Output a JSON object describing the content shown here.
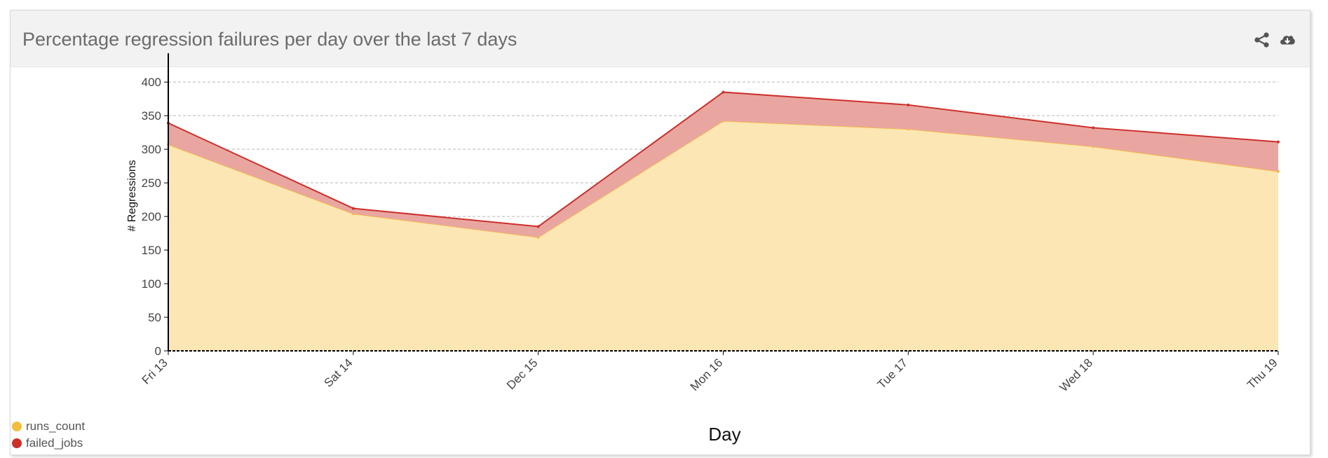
{
  "panel": {
    "title": "Percentage regression failures per day over the last 7 days",
    "icons": [
      "share-icon",
      "cloud-download-icon"
    ]
  },
  "chart_data": {
    "type": "area",
    "stacked": true,
    "categories": [
      "Fri 13",
      "Sat 14",
      "Dec 15",
      "Mon 16",
      "Tue 17",
      "Wed 18",
      "Thu 19"
    ],
    "series": [
      {
        "name": "runs_count",
        "color": "#f5bd3d",
        "fill": "#fce6b4",
        "values": [
          307,
          204,
          169,
          342,
          330,
          304,
          267
        ]
      },
      {
        "name": "failed_jobs",
        "color": "#cc2f2a",
        "fill": "#e9a6a1",
        "values": [
          32,
          8,
          16,
          43,
          36,
          28,
          44
        ]
      }
    ],
    "xlabel": "Day",
    "ylabel": "# Regressions",
    "ylim": [
      0,
      420
    ],
    "yticks": [
      0,
      50,
      100,
      150,
      200,
      250,
      300,
      350,
      400
    ],
    "grid": true,
    "legend_position": "bottom-left"
  }
}
